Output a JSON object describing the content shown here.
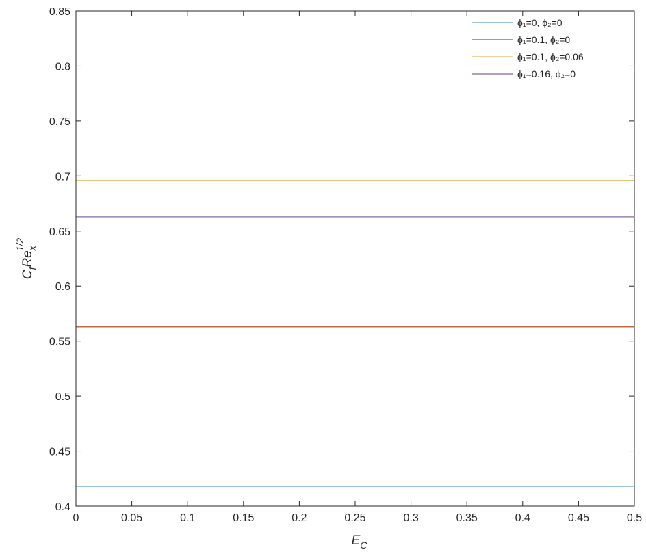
{
  "chart_data": {
    "type": "line",
    "title": "",
    "xlabel": "E_C",
    "ylabel": "C_f Re_x^{1/2}",
    "xlim": [
      0,
      0.5
    ],
    "ylim": [
      0.4,
      0.85
    ],
    "x_ticks": [
      "0",
      "0.05",
      "0.1",
      "0.15",
      "0.2",
      "0.25",
      "0.3",
      "0.35",
      "0.4",
      "0.45",
      "0.5"
    ],
    "y_ticks": [
      "0.4",
      "0.45",
      "0.5",
      "0.55",
      "0.6",
      "0.65",
      "0.7",
      "0.75",
      "0.8",
      "0.85"
    ],
    "grid": false,
    "legend_position": "top-right",
    "series": [
      {
        "name": "ϕ₁=0, ϕ₂=0",
        "color": "#7fb2d6",
        "x": [
          0,
          0.5
        ],
        "y": [
          0.418,
          0.418
        ]
      },
      {
        "name": "ϕ₁=0.1, ϕ₂=0",
        "color": "#c46a3e",
        "x": [
          0,
          0.5
        ],
        "y": [
          0.563,
          0.563
        ]
      },
      {
        "name": "ϕ₁=0.1, ϕ₂=0.06",
        "color": "#e8c477",
        "x": [
          0,
          0.5
        ],
        "y": [
          0.696,
          0.696
        ]
      },
      {
        "name": "ϕ₁=0.16, ϕ₂=0",
        "color": "#9a7fb0",
        "x": [
          0,
          0.5
        ],
        "y": [
          0.663,
          0.663
        ]
      }
    ]
  }
}
